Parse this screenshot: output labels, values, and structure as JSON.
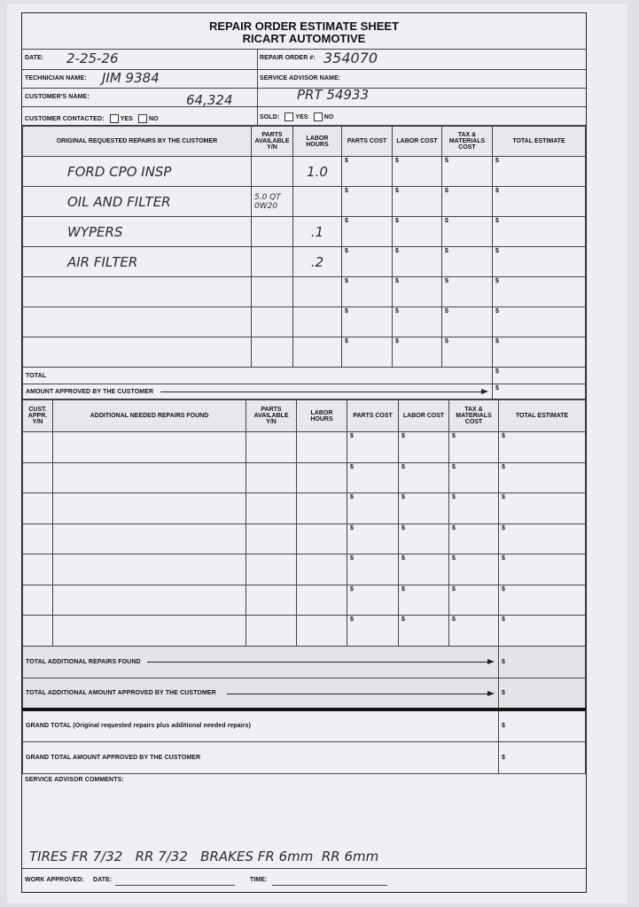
{
  "header": {
    "title": "REPAIR ORDER ESTIMATE SHEET",
    "company": "RICART AUTOMOTIVE"
  },
  "fields": {
    "date_label": "DATE:",
    "date_value": "2-25-26",
    "repair_order_label": "REPAIR ORDER #:",
    "repair_order_value": "354070",
    "technician_label": "TECHNICIAN NAME:",
    "technician_value": "JIM 9384",
    "service_advisor_label": "SERVICE ADVISOR NAME:",
    "service_advisor_value": "PRT 54933",
    "customer_label": "CUSTOMER'S NAME:",
    "customer_value": "64,324",
    "contacted_label": "CUSTOMER CONTACTED:",
    "yes_label": "YES",
    "no_label": "NO",
    "sold_label": "SOLD:"
  },
  "original_table": {
    "headers": [
      "ORIGINAL REQUESTED REPAIRS BY THE CUSTOMER",
      "PARTS AVAILABLE Y/N",
      "LABOR HOURS",
      "PARTS COST",
      "LABOR COST",
      "TAX & MATERIALS COST",
      "TOTAL ESTIMATE"
    ],
    "currency": "$",
    "rows": [
      {
        "repair": "FORD CPO INSP",
        "parts": "",
        "hours": "1.0"
      },
      {
        "repair": "OIL AND FILTER",
        "parts": "5.0 QT 0W20",
        "hours": ""
      },
      {
        "repair": "WYPERS",
        "parts": "",
        "hours": ".1"
      },
      {
        "repair": "AIR FILTER",
        "parts": "",
        "hours": ".2"
      },
      {
        "repair": "",
        "parts": "",
        "hours": ""
      },
      {
        "repair": "",
        "parts": "",
        "hours": ""
      },
      {
        "repair": "",
        "parts": "",
        "hours": ""
      }
    ],
    "total_label": "TOTAL",
    "approved_label": "AMOUNT APPROVED BY THE CUSTOMER"
  },
  "additional_table": {
    "headers": [
      "CUST. APPR. Y/N",
      "ADDITIONAL NEEDED REPAIRS FOUND",
      "PARTS AVAILABLE Y/N",
      "LABOR HOURS",
      "PARTS COST",
      "LABOR COST",
      "TAX & MATERIALS COST",
      "TOTAL ESTIMATE"
    ],
    "row_count_rows": [
      "",
      "",
      "",
      "",
      "",
      "",
      ""
    ]
  },
  "totals": {
    "additional_found": "TOTAL ADDITIONAL REPAIRS FOUND",
    "additional_approved": "TOTAL ADDITIONAL AMOUNT APPROVED BY THE CUSTOMER",
    "grand_total": "GRAND TOTAL (Original requested repairs plus additional needed repairs)",
    "grand_approved": "GRAND TOTAL AMOUNT APPROVED BY THE CUSTOMER"
  },
  "comments": {
    "label": "SERVICE ADVISOR COMMENTS:",
    "value": "TIRES FR 7/32   RR 7/32   BRAKES FR 6mm  RR 6mm"
  },
  "footer": {
    "work_approved": "WORK APPROVED:",
    "date": "DATE:",
    "time": "TIME:"
  }
}
